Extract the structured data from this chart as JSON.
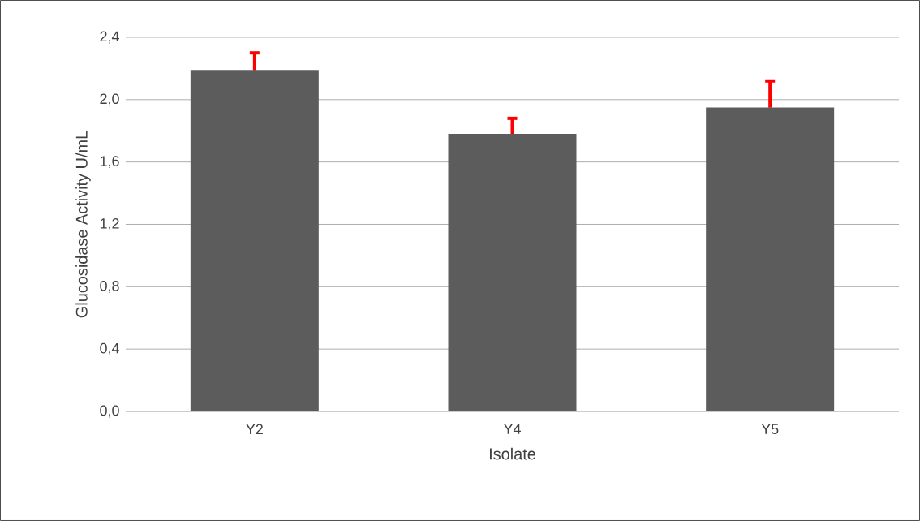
{
  "chart_data": {
    "type": "bar",
    "xlabel": "Isolate",
    "ylabel": "Glucosidase Activity U/mL",
    "categories": [
      "Y2",
      "Y4",
      "Y5"
    ],
    "values": [
      2.19,
      1.78,
      1.95
    ],
    "errors": [
      0.11,
      0.1,
      0.17
    ],
    "color": "#5c5c5c",
    "ylim": [
      0,
      2.4
    ],
    "yticks": [
      {
        "value": 0,
        "label": "0,0"
      },
      {
        "value": 0.4,
        "label": "0,4"
      },
      {
        "value": 0.8,
        "label": "0,8"
      },
      {
        "value": 1.2,
        "label": "1,2"
      },
      {
        "value": 1.6,
        "label": "1,6"
      },
      {
        "value": 2.0,
        "label": "2,0"
      },
      {
        "value": 2.4,
        "label": "2,4"
      }
    ],
    "grid": "y"
  }
}
